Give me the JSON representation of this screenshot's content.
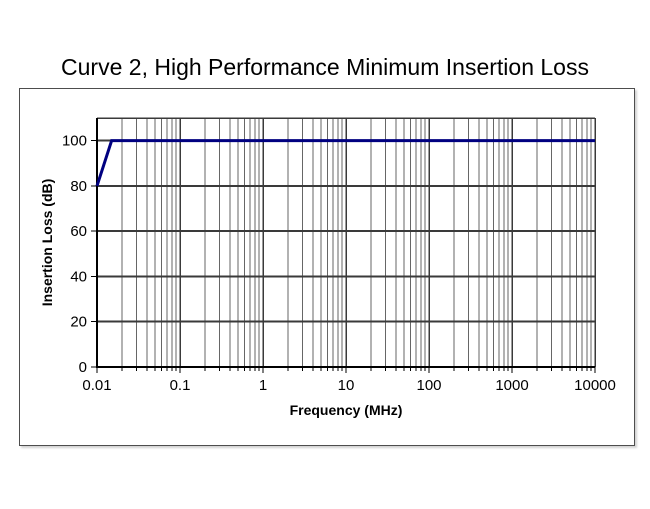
{
  "chart_data": {
    "type": "line",
    "title": "Curve 2, High Performance Minimum Insertion Loss",
    "xlabel": "Frequency (MHz)",
    "ylabel": "Insertion Loss (dB)",
    "x_scale": "log",
    "xlim": [
      0.01,
      10000
    ],
    "ylim": [
      0,
      110
    ],
    "x_ticks": [
      0.01,
      0.1,
      1,
      10,
      100,
      1000,
      10000
    ],
    "x_tick_labels": [
      "0.01",
      "0.1",
      "1",
      "10",
      "100",
      "1000",
      "10000"
    ],
    "y_ticks": [
      0,
      20,
      40,
      60,
      80,
      100
    ],
    "grid": true,
    "legend": "none",
    "series": [
      {
        "name": "Curve 2 minimum insertion loss",
        "color": "#000080",
        "points": [
          [
            0.01,
            80
          ],
          [
            0.015,
            100
          ],
          [
            10000,
            100
          ]
        ]
      }
    ],
    "colors": {
      "curve": "#000080",
      "grid_major": "#3a3a3a",
      "grid_minor": "#666666",
      "axis": "#000000",
      "frame_border": "#4d4d4d",
      "text": "#000000",
      "background": "#ffffff"
    }
  }
}
